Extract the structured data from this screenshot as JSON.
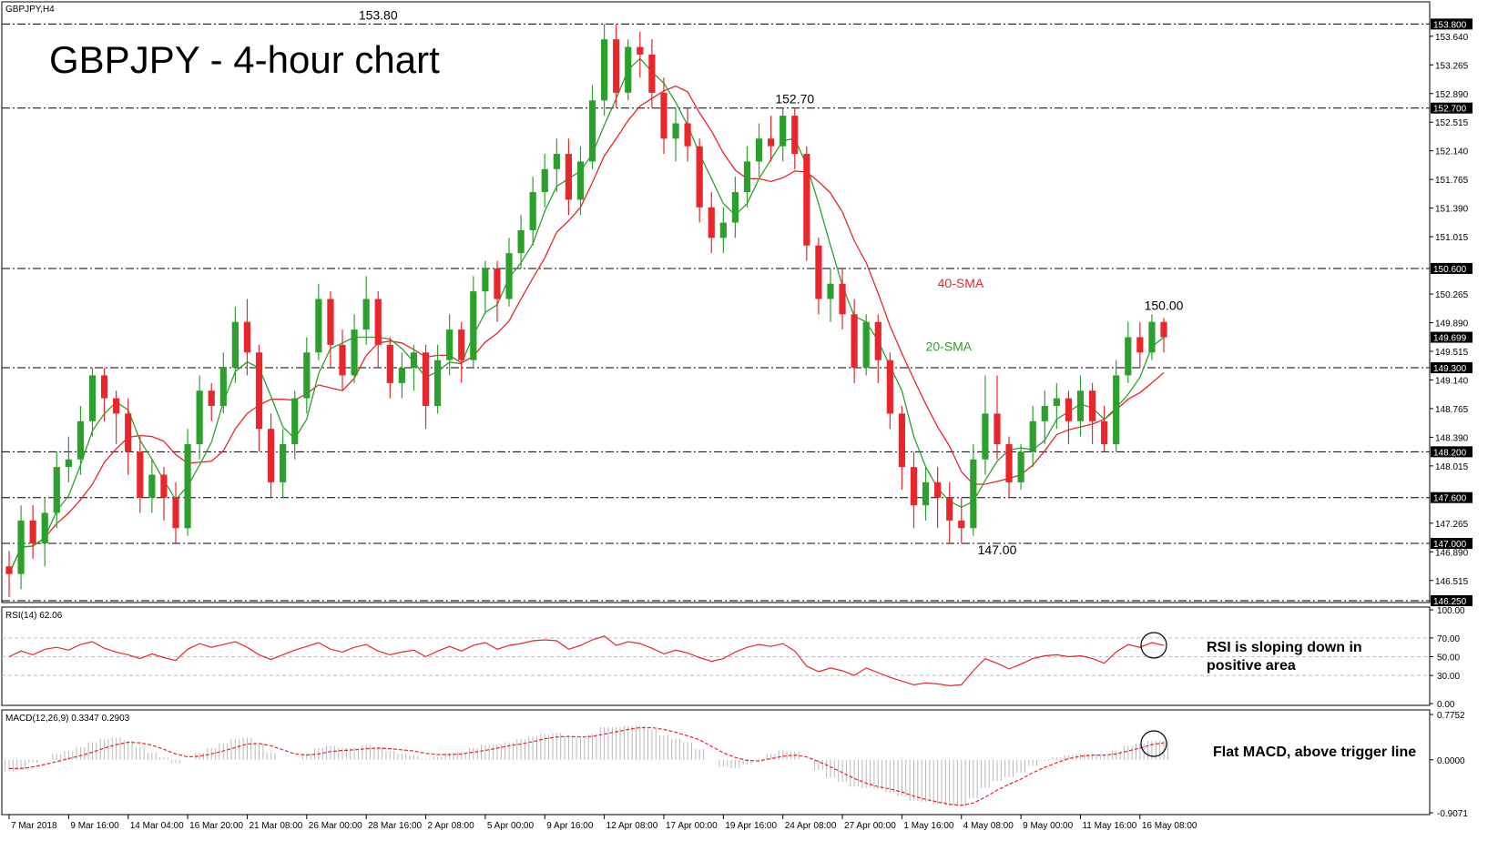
{
  "symbol_label": "GBPJPY,H4",
  "headline": "GBPJPY - 4-hour chart",
  "colors": {
    "bull": "#2ca02c",
    "bear": "#e8262b",
    "sma20": "#2ca02c",
    "sma40": "#e8262b",
    "rsi": "#e8262b",
    "macd_hist": "#b8b8b8",
    "macd_signal": "#e8262b",
    "level_badge_bg": "#000000",
    "level_badge_fg": "#ffffff",
    "frame": "#000000"
  },
  "chart_data": [
    {
      "type": "candlestick",
      "title": "GBPJPY - 4-hour chart",
      "ylim": [
        146.25,
        153.9
      ],
      "price_axis_ticks": [
        "153.640",
        "153.265",
        "152.890",
        "152.515",
        "152.140",
        "151.765",
        "151.390",
        "151.015",
        "150.265",
        "149.890",
        "149.515",
        "149.140",
        "148.765",
        "148.390",
        "148.015",
        "147.265",
        "146.890",
        "146.515"
      ],
      "key_levels": [
        {
          "value": 153.8,
          "label": "153.800"
        },
        {
          "value": 152.7,
          "label": "152.700"
        },
        {
          "value": 150.6,
          "label": "150.600"
        },
        {
          "value": 149.3,
          "label": "149.300"
        },
        {
          "value": 148.2,
          "label": "148.200"
        },
        {
          "value": 147.6,
          "label": "147.600"
        },
        {
          "value": 147.0,
          "label": "147.000"
        },
        {
          "value": 146.25,
          "label": "146.250"
        }
      ],
      "current_price": {
        "value": 149.699,
        "label": "149.699"
      },
      "annotations": [
        {
          "text": "153.80",
          "x": 31,
          "y": 153.8
        },
        {
          "text": "152.70",
          "x": 66,
          "y": 152.7
        },
        {
          "text": "147.00",
          "x": 83,
          "y": 147.0
        },
        {
          "text": "150.00",
          "x": 97,
          "y": 150.0
        }
      ],
      "series_labels": [
        {
          "text": "40-SMA",
          "x": 78,
          "y": 150.35
        },
        {
          "text": "20-SMA",
          "x": 77,
          "y": 149.52
        }
      ],
      "x_tick_labels": [
        {
          "i": 0,
          "label": "7 Mar 2018"
        },
        {
          "i": 5,
          "label": "9 Mar 16:00"
        },
        {
          "i": 10,
          "label": "14 Mar 04:00"
        },
        {
          "i": 15,
          "label": "16 Mar 20:00"
        },
        {
          "i": 20,
          "label": "21 Mar 08:00"
        },
        {
          "i": 25,
          "label": "26 Mar 00:00"
        },
        {
          "i": 30,
          "label": "28 Mar 16:00"
        },
        {
          "i": 35,
          "label": "2 Apr 08:00"
        },
        {
          "i": 40,
          "label": "5 Apr 00:00"
        },
        {
          "i": 45,
          "label": "9 Apr 16:00"
        },
        {
          "i": 50,
          "label": "12 Apr 08:00"
        },
        {
          "i": 55,
          "label": "17 Apr 00:00"
        },
        {
          "i": 60,
          "label": "19 Apr 16:00"
        },
        {
          "i": 65,
          "label": "24 Apr 08:00"
        },
        {
          "i": 70,
          "label": "27 Apr 00:00"
        },
        {
          "i": 75,
          "label": "1 May 16:00"
        },
        {
          "i": 80,
          "label": "4 May 08:00"
        },
        {
          "i": 85,
          "label": "9 May 00:00"
        },
        {
          "i": 90,
          "label": "11 May 16:00"
        },
        {
          "i": 95,
          "label": "16 May 08:00"
        }
      ],
      "candles": [
        [
          146.7,
          146.6,
          146.3,
          146.9
        ],
        [
          146.6,
          147.3,
          146.4,
          147.5
        ],
        [
          147.3,
          147.0,
          146.8,
          147.5
        ],
        [
          147.0,
          147.4,
          146.7,
          147.6
        ],
        [
          147.4,
          148.0,
          147.2,
          148.2
        ],
        [
          148.0,
          148.1,
          147.8,
          148.4
        ],
        [
          148.1,
          148.6,
          147.9,
          148.8
        ],
        [
          148.6,
          149.2,
          148.4,
          149.3
        ],
        [
          149.2,
          148.9,
          148.6,
          149.3
        ],
        [
          148.9,
          148.7,
          148.3,
          149.0
        ],
        [
          148.7,
          148.2,
          147.9,
          148.9
        ],
        [
          148.2,
          147.6,
          147.4,
          148.4
        ],
        [
          147.6,
          147.9,
          147.4,
          148.1
        ],
        [
          147.9,
          147.6,
          147.3,
          148.0
        ],
        [
          147.6,
          147.2,
          147.0,
          147.8
        ],
        [
          147.2,
          148.3,
          147.1,
          148.5
        ],
        [
          148.3,
          149.0,
          148.1,
          149.2
        ],
        [
          149.0,
          148.8,
          148.6,
          149.1
        ],
        [
          148.8,
          149.3,
          148.7,
          149.5
        ],
        [
          149.3,
          149.9,
          149.1,
          150.1
        ],
        [
          149.9,
          149.5,
          149.2,
          150.2
        ],
        [
          149.5,
          148.5,
          148.2,
          149.6
        ],
        [
          148.5,
          147.8,
          147.6,
          148.7
        ],
        [
          147.8,
          148.3,
          147.6,
          148.5
        ],
        [
          148.3,
          148.9,
          148.1,
          149.0
        ],
        [
          148.9,
          149.5,
          148.7,
          149.7
        ],
        [
          149.5,
          150.2,
          149.4,
          150.4
        ],
        [
          150.2,
          149.6,
          149.3,
          150.3
        ],
        [
          149.6,
          149.2,
          149.0,
          149.8
        ],
        [
          149.2,
          149.8,
          149.1,
          150.0
        ],
        [
          149.8,
          150.2,
          149.6,
          150.5
        ],
        [
          150.2,
          149.6,
          149.3,
          150.3
        ],
        [
          149.6,
          149.1,
          148.9,
          149.7
        ],
        [
          149.1,
          149.3,
          148.9,
          149.5
        ],
        [
          149.3,
          149.5,
          149.0,
          149.6
        ],
        [
          149.5,
          148.8,
          148.5,
          149.6
        ],
        [
          148.8,
          149.4,
          148.7,
          149.6
        ],
        [
          149.4,
          149.8,
          149.2,
          150.0
        ],
        [
          149.8,
          149.4,
          149.1,
          149.9
        ],
        [
          149.4,
          150.3,
          149.3,
          150.5
        ],
        [
          150.3,
          150.6,
          150.0,
          150.7
        ],
        [
          150.6,
          150.2,
          149.9,
          150.7
        ],
        [
          150.2,
          150.8,
          150.1,
          151.0
        ],
        [
          150.8,
          151.1,
          150.6,
          151.3
        ],
        [
          151.1,
          151.6,
          150.9,
          151.8
        ],
        [
          151.6,
          151.9,
          151.4,
          152.1
        ],
        [
          151.9,
          152.1,
          151.6,
          152.3
        ],
        [
          152.1,
          151.5,
          151.3,
          152.3
        ],
        [
          151.5,
          152.0,
          151.3,
          152.2
        ],
        [
          152.0,
          152.8,
          151.9,
          153.0
        ],
        [
          152.8,
          153.6,
          152.6,
          153.8
        ],
        [
          153.6,
          152.9,
          152.7,
          153.8
        ],
        [
          152.9,
          153.5,
          152.8,
          153.6
        ],
        [
          153.5,
          153.4,
          153.1,
          153.7
        ],
        [
          153.4,
          152.9,
          152.7,
          153.6
        ],
        [
          152.9,
          152.3,
          152.1,
          153.1
        ],
        [
          152.3,
          152.5,
          152.0,
          152.7
        ],
        [
          152.5,
          152.2,
          152.0,
          152.7
        ],
        [
          152.2,
          151.4,
          151.2,
          152.3
        ],
        [
          151.4,
          151.0,
          150.8,
          151.6
        ],
        [
          151.0,
          151.2,
          150.8,
          151.4
        ],
        [
          151.2,
          151.6,
          151.0,
          151.8
        ],
        [
          151.6,
          152.0,
          151.4,
          152.2
        ],
        [
          152.0,
          152.3,
          151.8,
          152.5
        ],
        [
          152.3,
          152.2,
          152.0,
          152.6
        ],
        [
          152.2,
          152.6,
          152.0,
          152.7
        ],
        [
          152.6,
          152.1,
          151.9,
          152.7
        ],
        [
          152.1,
          150.9,
          150.7,
          152.2
        ],
        [
          150.9,
          150.2,
          150.0,
          151.0
        ],
        [
          150.2,
          150.4,
          149.9,
          150.6
        ],
        [
          150.4,
          150.0,
          149.8,
          150.6
        ],
        [
          150.0,
          149.3,
          149.1,
          150.2
        ],
        [
          149.3,
          149.9,
          149.2,
          150.0
        ],
        [
          149.9,
          149.4,
          149.1,
          150.0
        ],
        [
          149.4,
          148.7,
          148.5,
          149.5
        ],
        [
          148.7,
          148.0,
          147.7,
          148.8
        ],
        [
          148.0,
          147.5,
          147.2,
          148.2
        ],
        [
          147.5,
          147.8,
          147.3,
          148.0
        ],
        [
          147.8,
          147.6,
          147.2,
          148.0
        ],
        [
          147.6,
          147.3,
          147.0,
          147.8
        ],
        [
          147.3,
          147.2,
          147.0,
          147.6
        ],
        [
          147.2,
          148.1,
          147.1,
          148.3
        ],
        [
          148.1,
          148.7,
          147.9,
          149.2
        ],
        [
          148.7,
          148.3,
          148.1,
          149.2
        ],
        [
          148.3,
          147.8,
          147.6,
          148.4
        ],
        [
          147.8,
          148.2,
          147.7,
          148.3
        ],
        [
          148.2,
          148.6,
          148.0,
          148.8
        ],
        [
          148.6,
          148.8,
          148.3,
          149.0
        ],
        [
          148.8,
          148.9,
          148.5,
          149.1
        ],
        [
          148.9,
          148.6,
          148.3,
          149.0
        ],
        [
          148.6,
          149.0,
          148.4,
          149.2
        ],
        [
          149.0,
          148.6,
          148.3,
          149.1
        ],
        [
          148.6,
          148.3,
          148.2,
          148.8
        ],
        [
          148.3,
          149.2,
          148.2,
          149.4
        ],
        [
          149.2,
          149.7,
          149.1,
          149.9
        ],
        [
          149.7,
          149.5,
          149.3,
          149.9
        ],
        [
          149.5,
          149.9,
          149.4,
          150.0
        ],
        [
          149.9,
          149.7,
          149.5,
          149.95
        ]
      ]
    },
    {
      "type": "line",
      "title": "RSI(14) 62.06",
      "header": "RSI(14) 62.06",
      "ylim": [
        0,
        100
      ],
      "y_ticks": [
        "100.00",
        "70.00",
        "50.00",
        "30.00",
        "0.00"
      ],
      "levels": [
        70,
        50,
        30
      ],
      "annotation": [
        "RSI is sloping down in",
        "positive area"
      ],
      "values": [
        50,
        56,
        52,
        58,
        60,
        57,
        63,
        66,
        59,
        55,
        52,
        48,
        53,
        49,
        46,
        58,
        64,
        60,
        63,
        66,
        60,
        52,
        47,
        52,
        57,
        61,
        65,
        58,
        55,
        60,
        63,
        56,
        52,
        55,
        57,
        50,
        56,
        61,
        56,
        62,
        65,
        58,
        62,
        64,
        67,
        68,
        67,
        58,
        62,
        68,
        72,
        62,
        66,
        64,
        59,
        53,
        57,
        54,
        49,
        45,
        48,
        55,
        60,
        63,
        61,
        64,
        56,
        40,
        34,
        38,
        35,
        30,
        38,
        33,
        28,
        24,
        20,
        22,
        21,
        19,
        20,
        35,
        48,
        43,
        37,
        42,
        48,
        51,
        52,
        50,
        51,
        48,
        43,
        55,
        63,
        60,
        65,
        62
      ]
    },
    {
      "type": "bar",
      "title": "MACD(12,26,9) 0.3347 0.2903",
      "header": "MACD(12,26,9) 0.3347 0.2903",
      "ylim": [
        -0.9071,
        0.7752
      ],
      "y_ticks": [
        "0.7752",
        "0.0000",
        "-0.9071"
      ],
      "annotation": "Flat MACD, above trigger line",
      "histogram": [
        -0.2,
        -0.15,
        -0.05,
        0.0,
        0.1,
        0.15,
        0.22,
        0.3,
        0.36,
        0.38,
        0.33,
        0.22,
        0.12,
        0.04,
        -0.06,
        0.0,
        0.12,
        0.2,
        0.28,
        0.36,
        0.38,
        0.28,
        0.12,
        0.0,
        0.0,
        0.1,
        0.2,
        0.24,
        0.2,
        0.2,
        0.25,
        0.22,
        0.15,
        0.1,
        0.08,
        0.02,
        0.05,
        0.12,
        0.13,
        0.2,
        0.26,
        0.26,
        0.3,
        0.35,
        0.4,
        0.44,
        0.46,
        0.4,
        0.38,
        0.44,
        0.56,
        0.56,
        0.58,
        0.58,
        0.52,
        0.42,
        0.36,
        0.3,
        0.18,
        0.0,
        -0.12,
        -0.14,
        -0.08,
        0.02,
        0.1,
        0.16,
        0.14,
        0.0,
        -0.18,
        -0.3,
        -0.38,
        -0.46,
        -0.48,
        -0.5,
        -0.56,
        -0.62,
        -0.7,
        -0.72,
        -0.76,
        -0.78,
        -0.8,
        -0.66,
        -0.48,
        -0.36,
        -0.3,
        -0.22,
        -0.1,
        -0.02,
        0.04,
        0.08,
        0.1,
        0.1,
        0.08,
        0.15,
        0.24,
        0.28,
        0.32,
        0.33
      ],
      "signal": [
        -0.15,
        -0.15,
        -0.12,
        -0.08,
        -0.03,
        0.02,
        0.07,
        0.13,
        0.2,
        0.26,
        0.3,
        0.29,
        0.25,
        0.18,
        0.1,
        0.05,
        0.06,
        0.1,
        0.15,
        0.21,
        0.27,
        0.28,
        0.24,
        0.17,
        0.1,
        0.08,
        0.1,
        0.14,
        0.16,
        0.17,
        0.19,
        0.2,
        0.19,
        0.17,
        0.15,
        0.11,
        0.09,
        0.09,
        0.1,
        0.13,
        0.16,
        0.2,
        0.24,
        0.27,
        0.31,
        0.36,
        0.39,
        0.4,
        0.39,
        0.4,
        0.44,
        0.48,
        0.52,
        0.55,
        0.55,
        0.52,
        0.47,
        0.41,
        0.34,
        0.23,
        0.12,
        0.04,
        -0.01,
        -0.02,
        0.02,
        0.06,
        0.08,
        0.05,
        -0.03,
        -0.12,
        -0.22,
        -0.32,
        -0.4,
        -0.46,
        -0.5,
        -0.55,
        -0.62,
        -0.68,
        -0.72,
        -0.76,
        -0.78,
        -0.74,
        -0.64,
        -0.52,
        -0.42,
        -0.33,
        -0.22,
        -0.13,
        -0.05,
        0.02,
        0.06,
        0.08,
        0.08,
        0.1,
        0.15,
        0.2,
        0.26,
        0.29
      ]
    }
  ]
}
